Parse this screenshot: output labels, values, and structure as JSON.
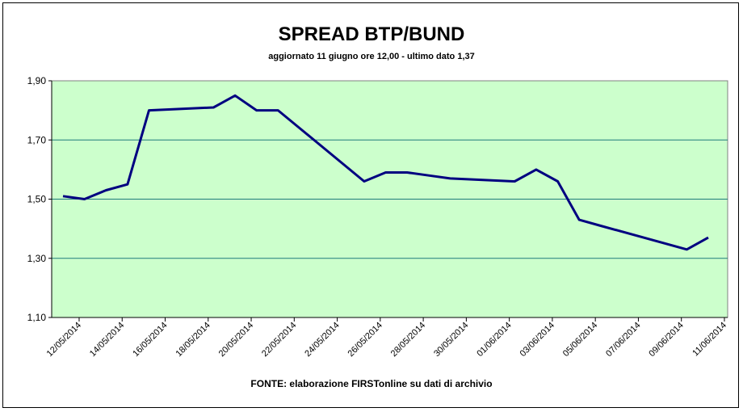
{
  "chart_data": {
    "type": "line",
    "title": "SPREAD BTP/BUND",
    "subtitle": "aggiornato 11 giugno ore 12,00 - ultimo dato 1,37",
    "footer": "FONTE:  elaborazione FIRSTonline su dati di archivio",
    "ylim": [
      1.1,
      1.9
    ],
    "y_ticks": [
      "1,10",
      "1,30",
      "1,50",
      "1,70",
      "1,90"
    ],
    "x_ticks": [
      "12/05/2014",
      "14/05/2014",
      "16/05/2014",
      "18/05/2014",
      "20/05/2014",
      "22/05/2014",
      "24/05/2014",
      "26/05/2014",
      "28/05/2014",
      "30/05/2014",
      "01/06/2014",
      "03/06/2014",
      "05/06/2014",
      "07/06/2014",
      "09/06/2014",
      "11/06/2014"
    ],
    "grid": true,
    "background_color": "#ccffcc",
    "gridline_color": "#1f7b7b",
    "line_color": "#000080",
    "series": [
      {
        "x": [
          "12/05/2014",
          "13/05/2014",
          "14/05/2014",
          "15/05/2014",
          "16/05/2014",
          "19/05/2014",
          "20/05/2014",
          "21/05/2014",
          "22/05/2014",
          "23/05/2014",
          "26/05/2014",
          "27/05/2014",
          "28/05/2014",
          "29/05/2014",
          "30/05/2014",
          "02/06/2014",
          "03/06/2014",
          "04/06/2014",
          "05/06/2014",
          "06/06/2014",
          "09/06/2014",
          "10/06/2014",
          "11/06/2014"
        ],
        "values": [
          1.51,
          1.5,
          1.53,
          1.55,
          1.8,
          1.81,
          1.85,
          1.8,
          1.8,
          1.74,
          1.56,
          1.59,
          1.59,
          1.58,
          1.57,
          1.56,
          1.6,
          1.56,
          1.43,
          1.41,
          1.35,
          1.33,
          1.37
        ]
      }
    ]
  }
}
